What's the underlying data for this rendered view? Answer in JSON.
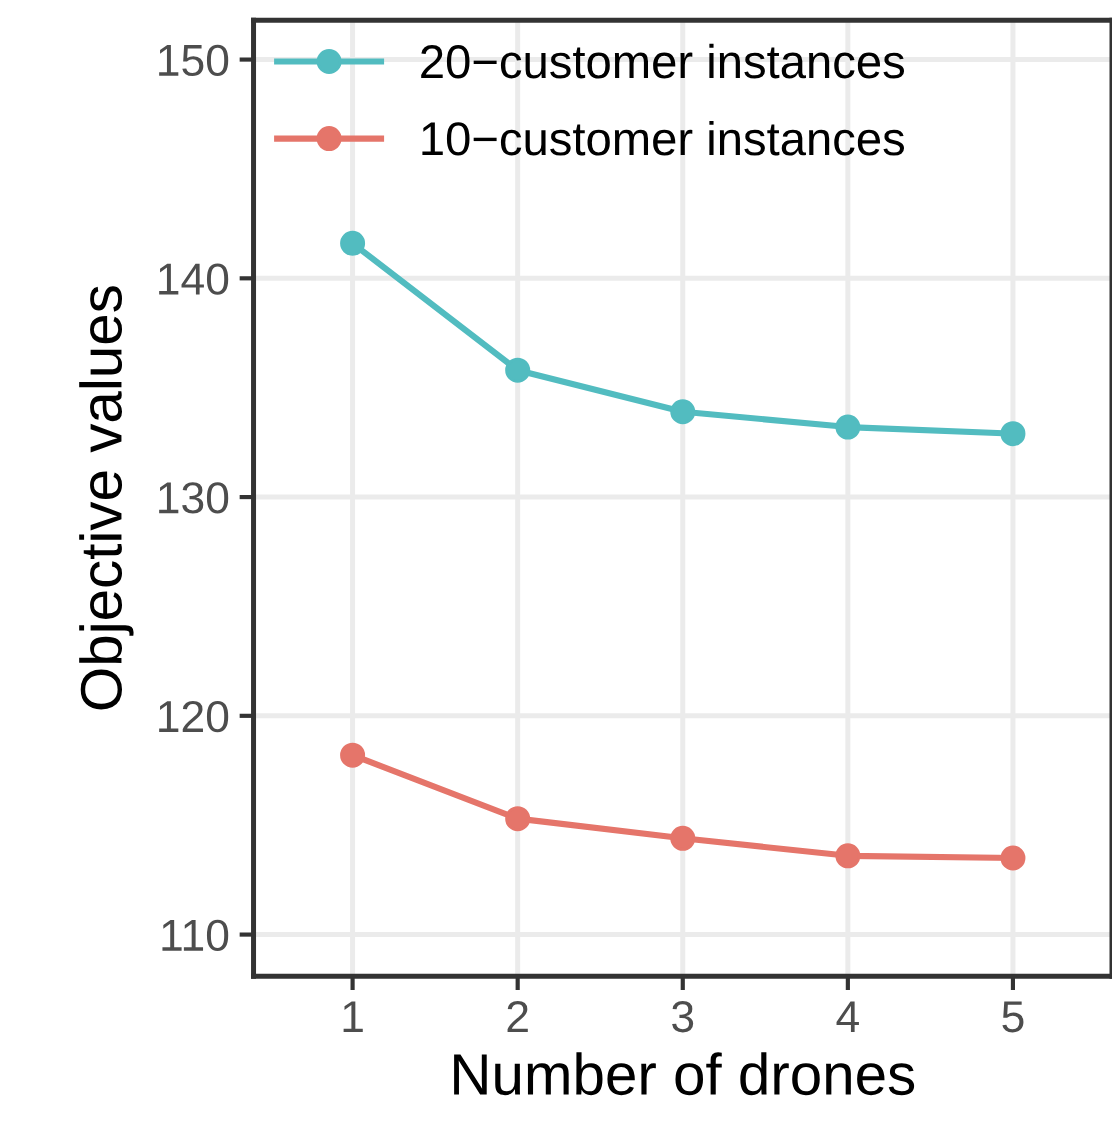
{
  "chart_data": {
    "type": "line",
    "xlabel": "Number of drones",
    "ylabel": "Objective values",
    "x": [
      1,
      2,
      3,
      4,
      5
    ],
    "series": [
      {
        "name": "20−customer instances",
        "color": "#52bcc0",
        "values": [
          141.6,
          135.8,
          133.9,
          133.2,
          132.9
        ]
      },
      {
        "name": "10−customer instances",
        "color": "#e5756a",
        "values": [
          118.2,
          115.3,
          114.4,
          113.6,
          113.5
        ]
      }
    ],
    "xlim": [
      0.4,
      5.6
    ],
    "xticks": [
      1,
      2,
      3,
      4,
      5
    ],
    "ylim": [
      108.1,
      151.8
    ],
    "yticks": [
      110,
      120,
      130,
      140,
      150
    ],
    "grid": true,
    "legend": "top left",
    "marker": "circle",
    "line_style": "solid"
  }
}
